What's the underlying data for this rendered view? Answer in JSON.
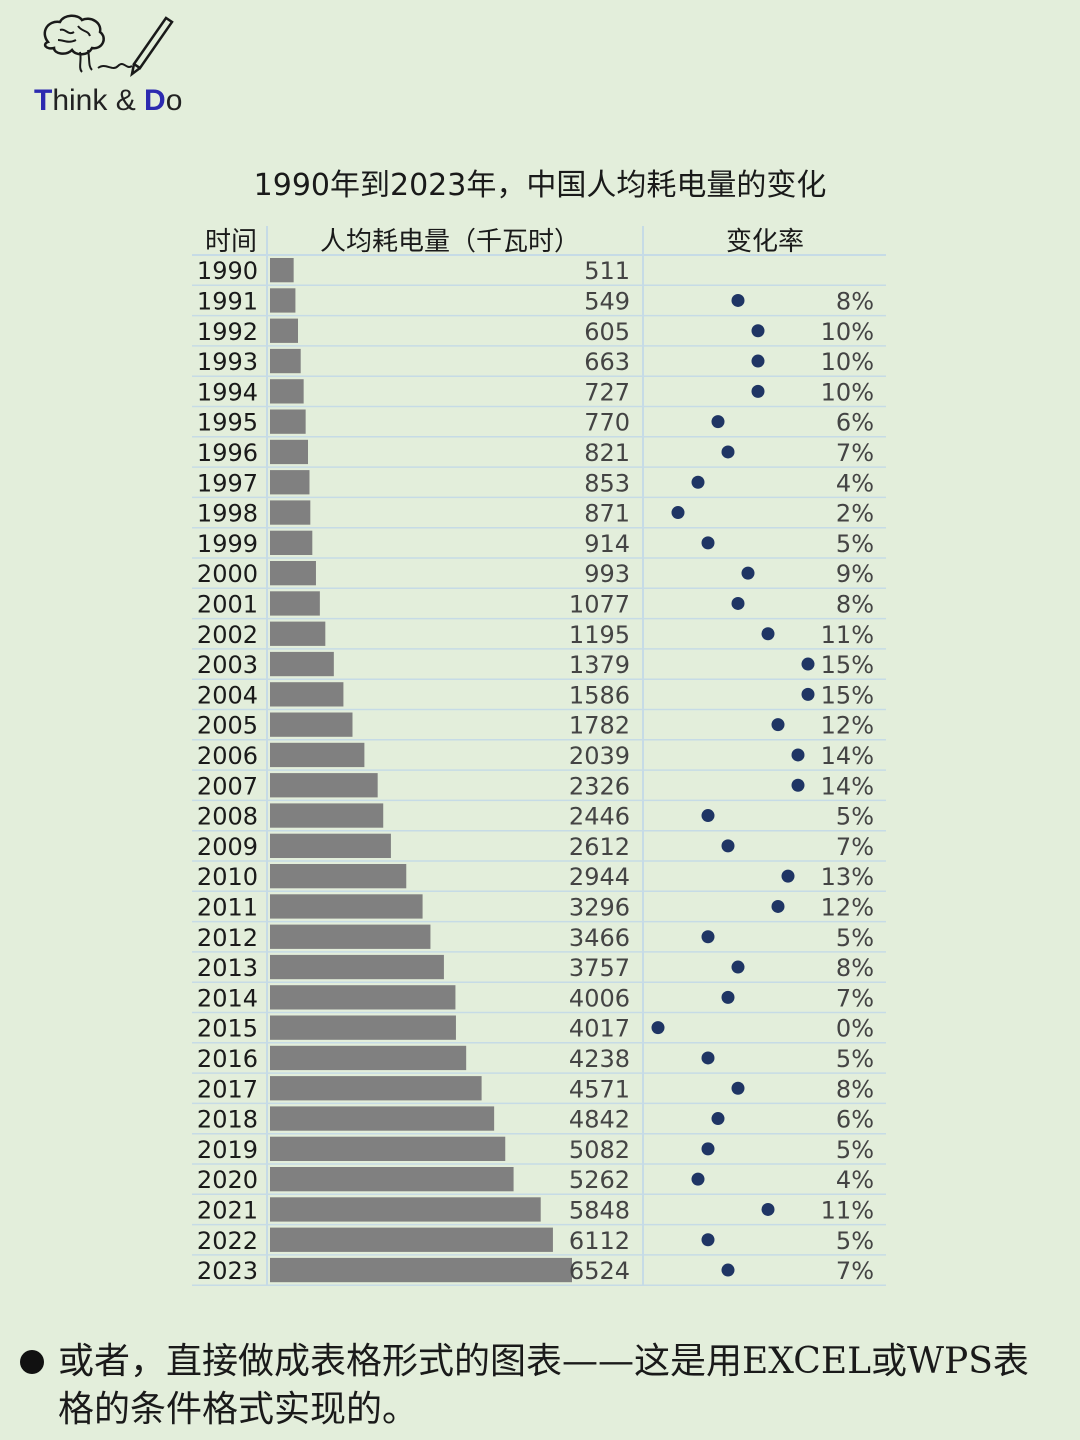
{
  "logo": {
    "icon": "brain-pen-icon",
    "text_T": "T",
    "text_hink": "hink & ",
    "text_D": "D",
    "text_o": "o"
  },
  "colors": {
    "background": "#e3eedb",
    "bar": "#808080",
    "dot": "#1f3564",
    "grid": "#c6dbe6",
    "brand_accent": "#2c2ab0"
  },
  "chart_data": {
    "type": "table",
    "title": "1990年到2023年，中国人均耗电量的变化",
    "columns": [
      "时间",
      "人均耗电量（千瓦时）",
      "变化率"
    ],
    "years": [
      "1990",
      "1991",
      "1992",
      "1993",
      "1994",
      "1995",
      "1996",
      "1997",
      "1998",
      "1999",
      "2000",
      "2001",
      "2002",
      "2003",
      "2004",
      "2005",
      "2006",
      "2007",
      "2008",
      "2009",
      "2010",
      "2011",
      "2012",
      "2013",
      "2014",
      "2015",
      "2016",
      "2017",
      "2018",
      "2019",
      "2020",
      "2021",
      "2022",
      "2023"
    ],
    "values": [
      511,
      549,
      605,
      663,
      727,
      770,
      821,
      853,
      871,
      914,
      993,
      1077,
      1195,
      1379,
      1586,
      1782,
      2039,
      2326,
      2446,
      2612,
      2944,
      3296,
      3466,
      3757,
      4006,
      4017,
      4238,
      4571,
      4842,
      5082,
      5262,
      5848,
      6112,
      6524
    ],
    "change_rates": [
      null,
      8,
      10,
      10,
      10,
      6,
      7,
      4,
      2,
      5,
      9,
      8,
      11,
      15,
      15,
      12,
      14,
      14,
      5,
      7,
      13,
      12,
      5,
      8,
      7,
      0,
      5,
      8,
      6,
      5,
      4,
      11,
      5,
      7
    ],
    "value_max": 6524,
    "rate_range": [
      0,
      15
    ],
    "rate_suffix": "%"
  },
  "footer": {
    "text": "或者，直接做成表格形式的图表——这是用EXCEL或WPS表格的条件格式实现的。"
  }
}
